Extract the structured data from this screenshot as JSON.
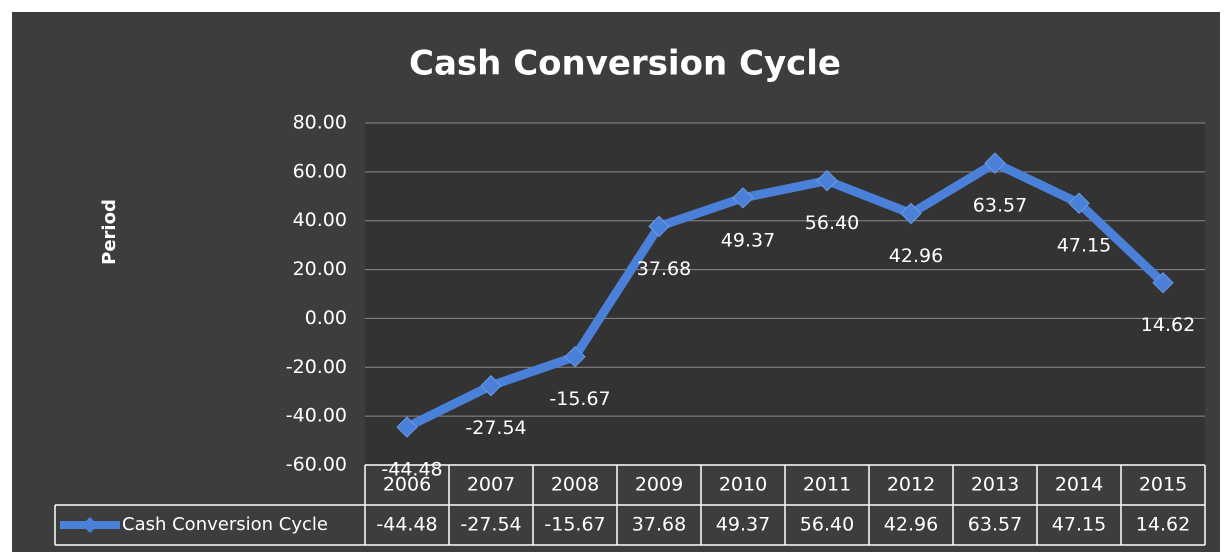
{
  "chart_data": {
    "type": "line",
    "title": "Cash Conversion Cycle",
    "y_label": "Period",
    "categories": [
      "2006",
      "2007",
      "2008",
      "2009",
      "2010",
      "2011",
      "2012",
      "2013",
      "2014",
      "2015"
    ],
    "series": [
      {
        "name": "Cash Conversion Cycle",
        "color": "#4a80d8",
        "values": [
          -44.48,
          -27.54,
          -15.67,
          37.68,
          49.37,
          56.4,
          42.96,
          63.57,
          47.15,
          14.62
        ],
        "value_labels": [
          "-44.48",
          "-27.54",
          "-15.67",
          "37.68",
          "49.37",
          "56.40",
          "42.96",
          "63.57",
          "47.15",
          "14.62"
        ]
      }
    ],
    "ylim": [
      -60,
      80
    ],
    "yticks": [
      {
        "value": -60,
        "label": "-60.00"
      },
      {
        "value": -40,
        "label": "-40.00"
      },
      {
        "value": -20,
        "label": "-20.00"
      },
      {
        "value": 0,
        "label": "0.00"
      },
      {
        "value": 20,
        "label": "20.00"
      },
      {
        "value": 40,
        "label": "40.00"
      },
      {
        "value": 60,
        "label": "60.00"
      },
      {
        "value": 80,
        "label": "80.00"
      }
    ],
    "grid": true
  }
}
